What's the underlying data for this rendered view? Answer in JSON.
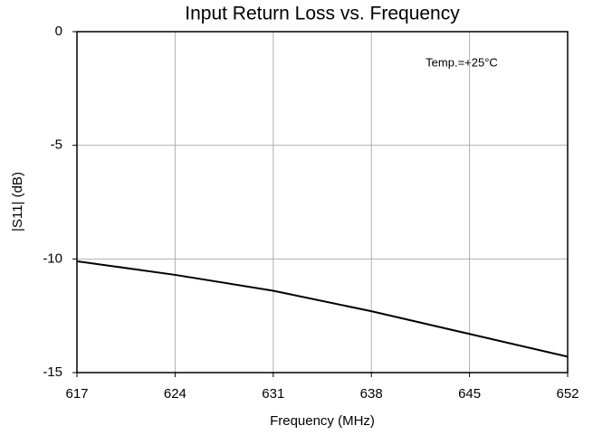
{
  "chart_data": {
    "type": "line",
    "title": "Input Return Loss vs. Frequency",
    "xlabel": "Frequency (MHz)",
    "ylabel": "|S11| (dB)",
    "annotation": "Temp.=+25°C",
    "x": [
      617,
      624,
      631,
      638,
      645,
      652
    ],
    "series": [
      {
        "color": "#000000",
        "values": [
          -10.1,
          -10.7,
          -11.4,
          -12.3,
          -13.3,
          -14.3
        ]
      }
    ],
    "xlim": [
      617,
      652
    ],
    "xticks": [
      617,
      624,
      631,
      638,
      645,
      652
    ],
    "ylim": [
      -15,
      0
    ],
    "yticks": [
      0,
      -5,
      -10,
      -15
    ],
    "grid": true
  }
}
